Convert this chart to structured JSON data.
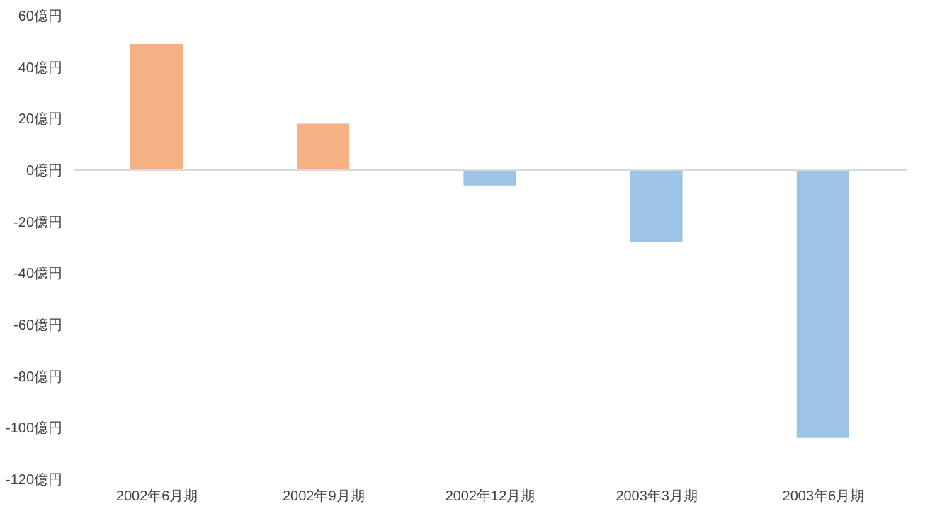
{
  "chart_data": {
    "type": "bar",
    "categories": [
      "2002年6月期",
      "2002年9月期",
      "2002年12月期",
      "2003年3月期",
      "2003年6月期"
    ],
    "values": [
      49,
      18,
      -6,
      -28,
      -104
    ],
    "colors": [
      "#f4b183",
      "#f4b183",
      "#9dc3e6",
      "#9dc3e6",
      "#9dc3e6"
    ],
    "ylim": [
      -120,
      60
    ],
    "yticks": [
      {
        "value": 60,
        "label": "60億円"
      },
      {
        "value": 40,
        "label": "40億円"
      },
      {
        "value": 20,
        "label": "20億円"
      },
      {
        "value": 0,
        "label": "0億円"
      },
      {
        "value": -20,
        "label": "-20億円"
      },
      {
        "value": -40,
        "label": "-40億円"
      },
      {
        "value": -60,
        "label": "-60億円"
      },
      {
        "value": -80,
        "label": "-80億円"
      },
      {
        "value": -100,
        "label": "-100億円"
      },
      {
        "value": -120,
        "label": "-120億円"
      }
    ],
    "ref_lines": [
      {
        "axis": "y",
        "value": 0,
        "color": "#d9d9d9"
      }
    ],
    "grid": false,
    "legend": false
  }
}
